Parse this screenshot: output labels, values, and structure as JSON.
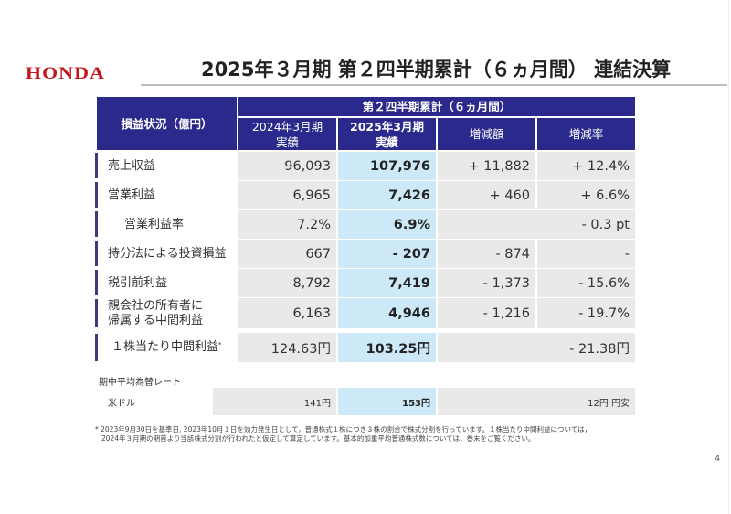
{
  "brand": "HONDA",
  "title": "2025年３月期 第２四半期累計（６ヵ月間） 連結決算",
  "table": {
    "corner_header": "損益状況（億円）",
    "group_header": "第２四半期累計（６ヵ月間）",
    "columns": [
      {
        "line1": "2024年3月期",
        "line2": "実績"
      },
      {
        "line1": "2025年3月期",
        "line2": "実績"
      },
      {
        "line1": "増減額"
      },
      {
        "line1": "増減率"
      }
    ],
    "rows": [
      {
        "label": "売上収益",
        "prev": "96,093",
        "curr": "107,976",
        "diff": "+ 11,882",
        "rate": "+ 12.4%"
      },
      {
        "label": "営業利益",
        "prev": "6,965",
        "curr": "7,426",
        "diff": "+ 460",
        "rate": "+ 6.6%"
      },
      {
        "label": "営業利益率",
        "prev": "7.2%",
        "curr": "6.9%",
        "diff": "",
        "rate": "- 0.3 pt"
      },
      {
        "label": "持分法による投資損益",
        "prev": "667",
        "curr": "- 207",
        "diff": "- 874",
        "rate": "-"
      },
      {
        "label": "税引前利益",
        "prev": "8,792",
        "curr": "7,419",
        "diff": "- 1,373",
        "rate": "- 15.6%"
      },
      {
        "label_line1": "親会社の所有者に",
        "label_line2": "帰属する中間利益",
        "prev": "6,163",
        "curr": "4,946",
        "diff": "- 1,216",
        "rate": "- 19.7%"
      },
      {
        "label": "１株当たり中間利益",
        "label_mark": "*",
        "prev": "124.63円",
        "curr": "103.25円",
        "diff": "",
        "rate": "- 21.38円"
      }
    ]
  },
  "fx": {
    "heading": "期中平均為替レート",
    "label": "米ドル",
    "prev": "141円",
    "curr": "153円",
    "change": "12円 円安"
  },
  "footnote": {
    "line1": "* 2023年9月30日を基準日, 2023年10月１日を効力発生日として，普通株式１株につき３株の割合で株式分割を行っています。１株当たり中間利益については，",
    "line2": "2024年３月期の期首より当該株式分割が行われたと仮定して算定しています。基本的加重平均普通株式数については，巻末をご覧ください。"
  },
  "page_number": "4",
  "colors": {
    "header": "#2b2a8c",
    "highlight": "#cde9f8",
    "cell": "#e9e9e9",
    "brand": "#c4161c"
  }
}
